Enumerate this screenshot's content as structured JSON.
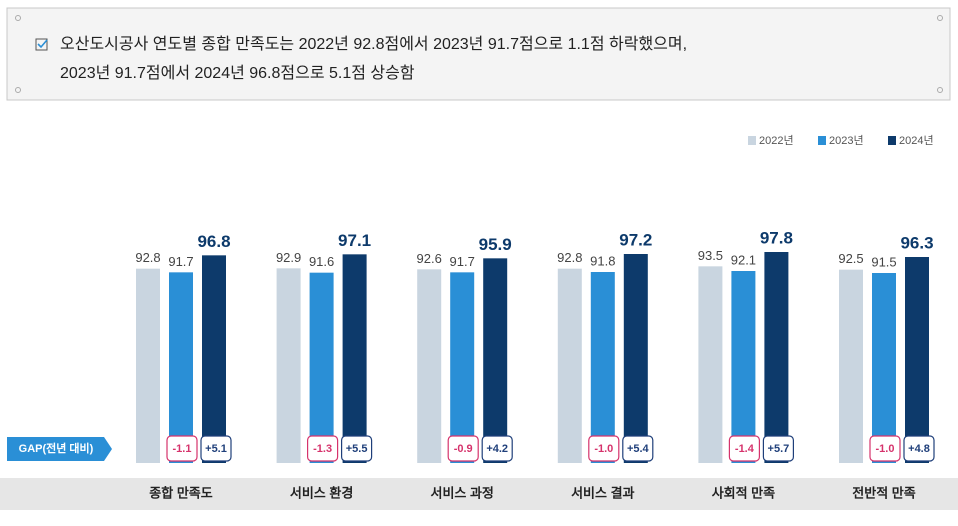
{
  "summary": [
    "오산도시공사 연도별 종합 만족도는 2022년 92.8점에서 2023년 91.7점으로 1.1점 하락했으며,",
    "2023년 91.7점에서 2024년 96.8점으로 5.1점 상승함"
  ],
  "chart_data": {
    "type": "bar",
    "categories": [
      "종합 만족도",
      "서비스 환경",
      "서비스 과정",
      "서비스 결과",
      "사회적 만족",
      "전반적 만족"
    ],
    "series": [
      {
        "name": "2022년",
        "color": "#c9d5e0",
        "values": [
          92.8,
          92.9,
          92.6,
          92.8,
          93.5,
          92.5
        ]
      },
      {
        "name": "2023년",
        "color": "#2a8fd6",
        "values": [
          91.7,
          91.6,
          91.7,
          91.8,
          92.1,
          91.5
        ]
      },
      {
        "name": "2024년",
        "color": "#0d3a6b",
        "values": [
          96.8,
          97.1,
          95.9,
          97.2,
          97.8,
          96.3
        ]
      }
    ],
    "gap_label": "GAP(전년 대비)",
    "gaps": [
      {
        "color": "#d6336c",
        "values": [
          -1.1,
          -1.3,
          -0.9,
          -1.0,
          -1.4,
          -1.0
        ],
        "value_labels": [
          "-1.1",
          "-1.3",
          "-0.9",
          "-1.0",
          "-1.4",
          "-1.0"
        ]
      },
      {
        "color": "#1f3f7a",
        "values": [
          5.1,
          5.5,
          4.2,
          5.4,
          5.7,
          4.8
        ],
        "value_labels": [
          "+5.1",
          "+5.5",
          "+4.2",
          "+5.4",
          "+5.7",
          "+4.8"
        ]
      }
    ],
    "legend": "top-right"
  }
}
